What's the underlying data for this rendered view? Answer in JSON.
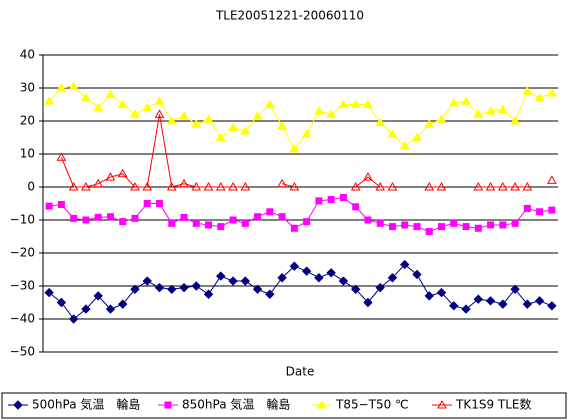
{
  "chart_data": {
    "type": "line",
    "title": "TLE20051221-20060110",
    "x_label": "Date",
    "categories": [
      null,
      null,
      null,
      null,
      null,
      null,
      null,
      null,
      null,
      null,
      null,
      null,
      null,
      null,
      null,
      null,
      null,
      null,
      null,
      null,
      null,
      null,
      null,
      null,
      null,
      null,
      null,
      null,
      null,
      null,
      null,
      null,
      null,
      null,
      null,
      null,
      null,
      null,
      null,
      null,
      null,
      null
    ],
    "ylim": [
      -50,
      40
    ],
    "yticks": [
      {
        "value": -50,
        "label": "−50"
      },
      {
        "value": -40,
        "label": "−40"
      },
      {
        "value": -30,
        "label": "−30"
      },
      {
        "value": -20,
        "label": "−20"
      },
      {
        "value": -10,
        "label": "−10"
      },
      0,
      10,
      20,
      30,
      40
    ],
    "grid": true,
    "legend": "bottom",
    "series": [
      {
        "name": "500hPa 気温　輪島",
        "color": "#000080",
        "marker": "diamond",
        "values": [
          -32,
          -35,
          -40,
          -37,
          -33,
          -37,
          -35.5,
          -31,
          -28.5,
          -30.5,
          -31,
          -30.5,
          -30,
          -32.5,
          -27,
          -28.5,
          -28.5,
          -31,
          -32.5,
          -27.5,
          -24,
          -25.5,
          -27.5,
          -26,
          -28.5,
          -31,
          -35,
          -30.5,
          -27.5,
          -23.5,
          -26.5,
          -33,
          -32,
          -36,
          -37,
          -34,
          -34.5,
          -35.5,
          -31,
          -35.5,
          -34.5,
          -36
        ]
      },
      {
        "name": "850hPa 気温　輪島",
        "color": "#ff00ff",
        "marker": "square",
        "values": [
          -5.8,
          -5.3,
          -9.5,
          -10,
          -9.2,
          -9,
          -10.5,
          -9.5,
          -5,
          -5,
          -11,
          -9.2,
          -11,
          -11.5,
          -12,
          -10,
          -11,
          -9,
          -7.5,
          -9,
          -12.5,
          -10.5,
          -4.2,
          -3.8,
          -3.2,
          -6,
          -10,
          -11,
          -12,
          -11.5,
          -12,
          -13.5,
          -12,
          -11,
          -12,
          -12.5,
          -11.5,
          -11.5,
          -11,
          -6.5,
          -7.5,
          -7
        ]
      },
      {
        "name": "T85−T50 ℃",
        "color": "#ffff00",
        "marker": "triangle-fill",
        "values": [
          26,
          30,
          30.5,
          27,
          24,
          28,
          25,
          22,
          24,
          26,
          20,
          21.5,
          19,
          20.5,
          15,
          18,
          17,
          21.5,
          25,
          18.5,
          11.5,
          16,
          23,
          22,
          25,
          25,
          25,
          19.5,
          16,
          12.5,
          15,
          19,
          20.5,
          25.5,
          26,
          22,
          23,
          23.5,
          20,
          29,
          27,
          28.5
        ]
      },
      {
        "name": "TK1S9 TLE数",
        "color": "#ff0000",
        "marker": "triangle-open",
        "values": [
          null,
          9,
          0,
          0,
          1,
          3,
          4,
          0,
          0,
          22,
          0,
          1,
          0,
          0,
          0,
          0,
          0,
          null,
          null,
          1,
          0,
          null,
          null,
          null,
          null,
          0,
          3,
          0,
          0,
          null,
          null,
          0,
          0,
          null,
          null,
          0,
          0,
          0,
          0,
          0,
          null,
          2
        ]
      }
    ]
  }
}
